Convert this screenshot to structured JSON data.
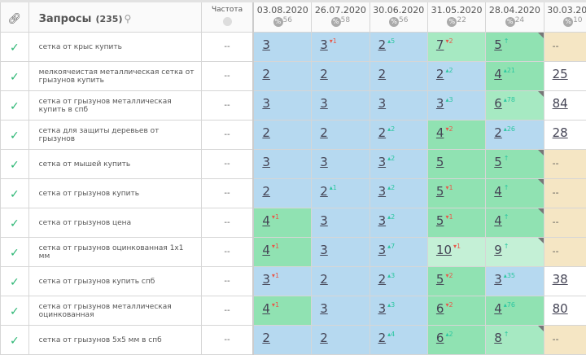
{
  "header": {
    "title": "Запросы",
    "count": "(235)",
    "frequency": "Частота",
    "dates": [
      {
        "date": "03.08.2020",
        "pct": "56"
      },
      {
        "date": "26.07.2020",
        "pct": "58"
      },
      {
        "date": "30.06.2020",
        "pct": "56"
      },
      {
        "date": "31.05.2020",
        "pct": "22"
      },
      {
        "date": "28.04.2020",
        "pct": "24"
      },
      {
        "date": "30.03.2020",
        "pct": "10"
      }
    ],
    "pct_symbol": "%"
  },
  "colors": {
    "blue": "#b6d9f0",
    "green": "#90e2b2",
    "light_green": "#a6e9c2",
    "pale_green": "#c4f0d6",
    "cream": "#f5e6c4",
    "check": "#2bb673",
    "delta_down": "#e8584a",
    "delta_up": "#2bc7a0"
  },
  "rows": [
    {
      "query": "сетка от крыс купить",
      "freq": "--",
      "cells": [
        {
          "v": "3",
          "c": "b"
        },
        {
          "v": "3",
          "d": "1",
          "dir": "dn",
          "c": "b"
        },
        {
          "v": "2",
          "d": "5",
          "dir": "up",
          "c": "b"
        },
        {
          "v": "7",
          "d": "2",
          "dir": "dn",
          "c": "lg"
        },
        {
          "v": "5",
          "d": "↑",
          "dir": "up",
          "c": "g",
          "corner": true
        },
        {
          "v": "--",
          "c": "cr"
        }
      ]
    },
    {
      "query": "мелкоячеистая металлическая сетка от грызунов купить",
      "freq": "--",
      "cells": [
        {
          "v": "2",
          "c": "b"
        },
        {
          "v": "2",
          "c": "b"
        },
        {
          "v": "2",
          "c": "b"
        },
        {
          "v": "2",
          "d": "2",
          "dir": "up",
          "c": "b"
        },
        {
          "v": "4",
          "d": "21",
          "dir": "up",
          "c": "g"
        },
        {
          "v": "25",
          "c": "w"
        }
      ]
    },
    {
      "query": "сетка от грызунов металлическая купить в спб",
      "freq": "--",
      "cells": [
        {
          "v": "3",
          "c": "b"
        },
        {
          "v": "3",
          "c": "b"
        },
        {
          "v": "3",
          "c": "b"
        },
        {
          "v": "3",
          "d": "3",
          "dir": "up",
          "c": "b"
        },
        {
          "v": "6",
          "d": "78",
          "dir": "up",
          "c": "lg",
          "corner": true
        },
        {
          "v": "84",
          "c": "w"
        }
      ]
    },
    {
      "query": "сетка для защиты деревьев от грызунов",
      "freq": "--",
      "cells": [
        {
          "v": "2",
          "c": "b"
        },
        {
          "v": "2",
          "c": "b"
        },
        {
          "v": "2",
          "d": "2",
          "dir": "up",
          "c": "b"
        },
        {
          "v": "4",
          "d": "2",
          "dir": "dn",
          "c": "g"
        },
        {
          "v": "2",
          "d": "26",
          "dir": "up",
          "c": "b"
        },
        {
          "v": "28",
          "c": "w"
        }
      ]
    },
    {
      "query": "сетка от мышей купить",
      "freq": "--",
      "cells": [
        {
          "v": "3",
          "c": "b"
        },
        {
          "v": "3",
          "c": "b"
        },
        {
          "v": "3",
          "d": "2",
          "dir": "up",
          "c": "b"
        },
        {
          "v": "5",
          "c": "g"
        },
        {
          "v": "5",
          "d": "↑",
          "dir": "up",
          "c": "g",
          "corner": true
        },
        {
          "v": "--",
          "c": "cr"
        }
      ]
    },
    {
      "query": "сетка от грызунов купить",
      "freq": "--",
      "cells": [
        {
          "v": "2",
          "c": "b"
        },
        {
          "v": "2",
          "d": "1",
          "dir": "up",
          "c": "b"
        },
        {
          "v": "3",
          "d": "2",
          "dir": "up",
          "c": "b"
        },
        {
          "v": "5",
          "d": "1",
          "dir": "dn",
          "c": "g"
        },
        {
          "v": "4",
          "d": "↑",
          "dir": "up",
          "c": "g",
          "corner": true
        },
        {
          "v": "--",
          "c": "cr"
        }
      ]
    },
    {
      "query": "сетка от грызунов цена",
      "freq": "--",
      "cells": [
        {
          "v": "4",
          "d": "1",
          "dir": "dn",
          "c": "g"
        },
        {
          "v": "3",
          "c": "b"
        },
        {
          "v": "3",
          "d": "2",
          "dir": "up",
          "c": "b"
        },
        {
          "v": "5",
          "d": "1",
          "dir": "dn",
          "c": "g"
        },
        {
          "v": "4",
          "d": "↑",
          "dir": "up",
          "c": "g",
          "corner": true
        },
        {
          "v": "--",
          "c": "cr"
        }
      ]
    },
    {
      "query": "сетка от грызунов оцинкованная 1х1 мм",
      "freq": "--",
      "cells": [
        {
          "v": "4",
          "d": "1",
          "dir": "dn",
          "c": "g"
        },
        {
          "v": "3",
          "c": "b"
        },
        {
          "v": "3",
          "d": "7",
          "dir": "up",
          "c": "b"
        },
        {
          "v": "10",
          "d": "1",
          "dir": "dn",
          "c": "xl"
        },
        {
          "v": "9",
          "d": "↑",
          "dir": "up",
          "c": "xl",
          "corner": true
        },
        {
          "v": "--",
          "c": "cr"
        }
      ]
    },
    {
      "query": "сетка от грызунов купить спб",
      "freq": "--",
      "cells": [
        {
          "v": "3",
          "d": "1",
          "dir": "dn",
          "c": "b"
        },
        {
          "v": "2",
          "c": "b"
        },
        {
          "v": "2",
          "d": "3",
          "dir": "up",
          "c": "b"
        },
        {
          "v": "5",
          "d": "2",
          "dir": "dn",
          "c": "g"
        },
        {
          "v": "3",
          "d": "35",
          "dir": "up",
          "c": "b"
        },
        {
          "v": "38",
          "c": "w"
        }
      ]
    },
    {
      "query": "сетка от грызунов металлическая оцинкованная",
      "freq": "--",
      "cells": [
        {
          "v": "4",
          "d": "1",
          "dir": "dn",
          "c": "g"
        },
        {
          "v": "3",
          "c": "b"
        },
        {
          "v": "3",
          "d": "3",
          "dir": "up",
          "c": "b"
        },
        {
          "v": "6",
          "d": "2",
          "dir": "dn",
          "c": "g"
        },
        {
          "v": "4",
          "d": "76",
          "dir": "up",
          "c": "g"
        },
        {
          "v": "80",
          "c": "w"
        }
      ]
    },
    {
      "query": "сетка от грызунов 5х5 мм в спб",
      "freq": "--",
      "cells": [
        {
          "v": "2",
          "c": "b"
        },
        {
          "v": "2",
          "c": "b"
        },
        {
          "v": "2",
          "d": "4",
          "dir": "up",
          "c": "b"
        },
        {
          "v": "6",
          "d": "2",
          "dir": "up",
          "c": "g"
        },
        {
          "v": "8",
          "d": "↑",
          "dir": "up",
          "c": "lg",
          "corner": true
        },
        {
          "v": "--",
          "c": "cr"
        }
      ]
    }
  ]
}
